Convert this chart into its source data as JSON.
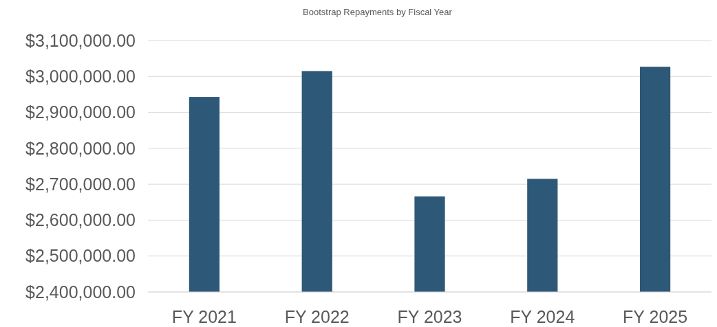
{
  "chart_data": {
    "type": "bar",
    "title": "Bootstrap Repayments by Fiscal Year",
    "categories": [
      "FY 2021",
      "FY 2022",
      "FY 2023",
      "FY 2024",
      "FY 2025"
    ],
    "values": [
      2943000,
      3015000,
      2666000,
      2715000,
      3027000
    ],
    "color": "#2e5878",
    "ylim": [
      2400000,
      3100000
    ],
    "yticks": [
      {
        "value": 2400000,
        "label": "$2,400,000.00"
      },
      {
        "value": 2500000,
        "label": "$2,500,000.00"
      },
      {
        "value": 2600000,
        "label": "$2,600,000.00"
      },
      {
        "value": 2700000,
        "label": "$2,700,000.00"
      },
      {
        "value": 2800000,
        "label": "$2,800,000.00"
      },
      {
        "value": 2900000,
        "label": "$2,900,000.00"
      },
      {
        "value": 3000000,
        "label": "$3,000,000.00"
      },
      {
        "value": 3100000,
        "label": "$3,100,000.00"
      }
    ],
    "grid": "y"
  }
}
